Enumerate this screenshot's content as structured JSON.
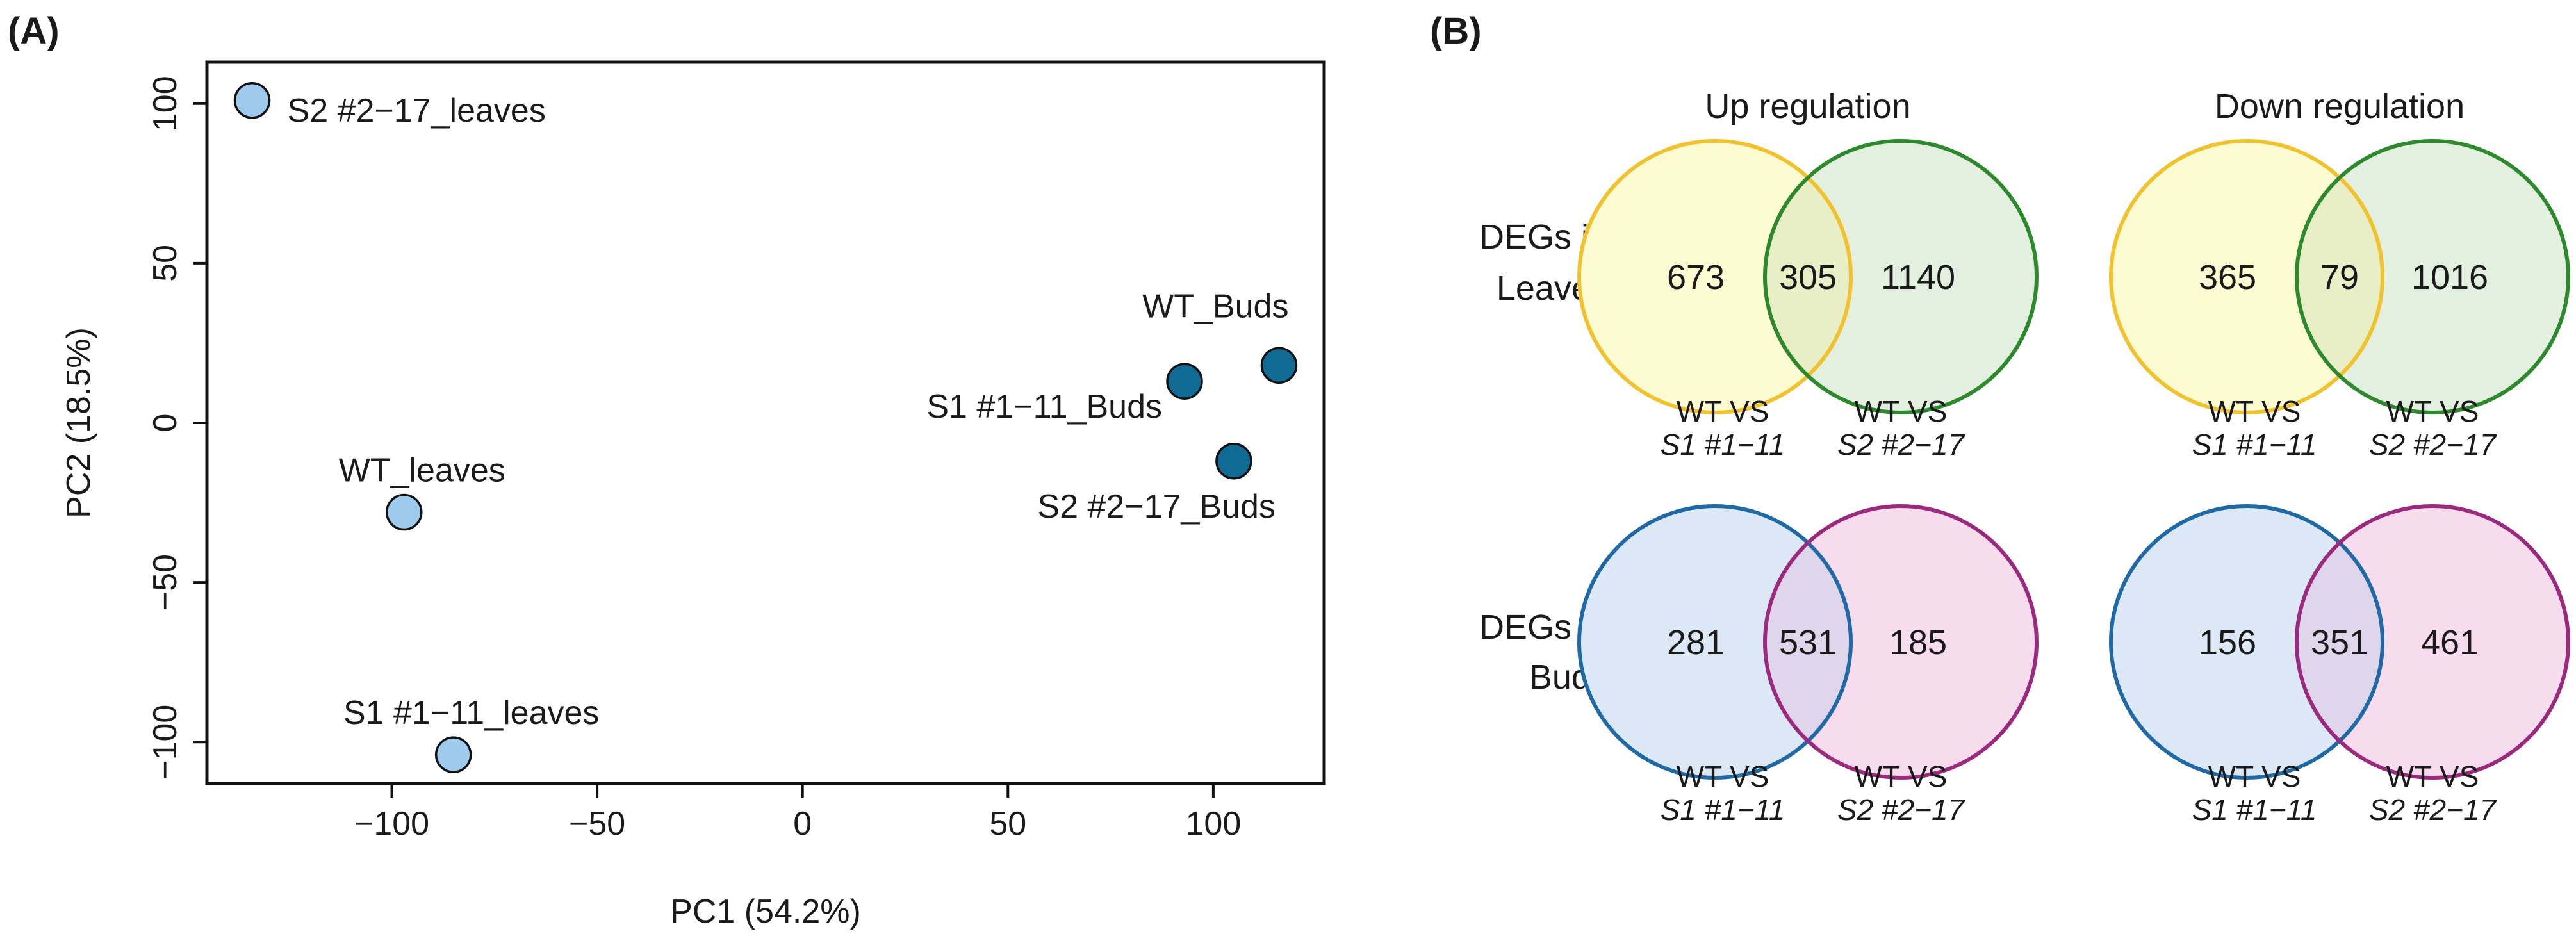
{
  "panels": {
    "a_label": "(A)",
    "b_label": "(B)"
  },
  "chart_data": [
    {
      "type": "scatter",
      "title": "",
      "xlabel": "PC1 (54.2%)",
      "ylabel": "PC2 (18.5%)",
      "xlim": [
        -145,
        127
      ],
      "ylim": [
        -113,
        113
      ],
      "xticks": [
        -100,
        -50,
        0,
        50,
        100
      ],
      "yticks": [
        100,
        50,
        0,
        -50,
        -100
      ],
      "xtick_labels": [
        "−100",
        "−50",
        "0",
        "50",
        "100"
      ],
      "ytick_labels": [
        "100",
        "50",
        "0",
        "−50",
        "−100"
      ],
      "grid": false,
      "points": [
        {
          "label": "S2 #2−17_leaves",
          "x": -134,
          "y": 101,
          "group": "leaves",
          "label_side": "right"
        },
        {
          "label": "WT_leaves",
          "x": -97,
          "y": -28,
          "group": "leaves",
          "label_side": "above"
        },
        {
          "label": "S1 #1−11_leaves",
          "x": -85,
          "y": -104,
          "group": "leaves",
          "label_side": "above"
        },
        {
          "label": "WT_Buds",
          "x": 116,
          "y": 18,
          "group": "buds",
          "label_side": "above-left"
        },
        {
          "label": "S1 #1−11_Buds",
          "x": 93,
          "y": 13,
          "group": "buds",
          "label_side": "left-below"
        },
        {
          "label": "S2 #2−17_Buds",
          "x": 105,
          "y": -12,
          "group": "buds",
          "label_side": "below-left"
        }
      ],
      "colors": {
        "leaves": "#9ecbed",
        "buds": "#106b94"
      }
    },
    {
      "type": "venn",
      "column_titles": [
        "Up regulation",
        "Down regulation"
      ],
      "row_labels": [
        [
          "DEGs in",
          "Leaves"
        ],
        [
          "DEGs in",
          "Buds"
        ]
      ],
      "diagrams": [
        {
          "row": 0,
          "col": 0,
          "left": 673,
          "overlap": 305,
          "right": 1140,
          "set_left": [
            "WT VS",
            "S1 #1−11"
          ],
          "set_right": [
            "WT VS",
            "S2 #2−17"
          ]
        },
        {
          "row": 0,
          "col": 1,
          "left": 365,
          "overlap": 79,
          "right": 1016,
          "set_left": [
            "WT VS",
            "S1 #1−11"
          ],
          "set_right": [
            "WT VS",
            "S2 #2−17"
          ]
        },
        {
          "row": 1,
          "col": 0,
          "left": 281,
          "overlap": 531,
          "right": 185,
          "set_left": [
            "WT VS",
            "S1 #1−11"
          ],
          "set_right": [
            "WT VS",
            "S2 #2−17"
          ]
        },
        {
          "row": 1,
          "col": 1,
          "left": 156,
          "overlap": 351,
          "right": 461,
          "set_left": [
            "WT VS",
            "S1 #1−11"
          ],
          "set_right": [
            "WT VS",
            "S2 #2−17"
          ]
        }
      ],
      "colors": {
        "leaves_left_stroke": "#f2c12e",
        "leaves_left_fill": "#fdfbd2",
        "leaves_right_stroke": "#2c8a2c",
        "leaves_right_fill": "#e3efdf",
        "buds_left_stroke": "#1f6aa6",
        "buds_left_fill": "#dce8f6",
        "buds_right_stroke": "#9b2a7e",
        "buds_right_fill": "#f7dcee",
        "leaves_overlap_fill": "#e8eec6",
        "buds_overlap_fill": "#e0d6ec"
      }
    }
  ]
}
